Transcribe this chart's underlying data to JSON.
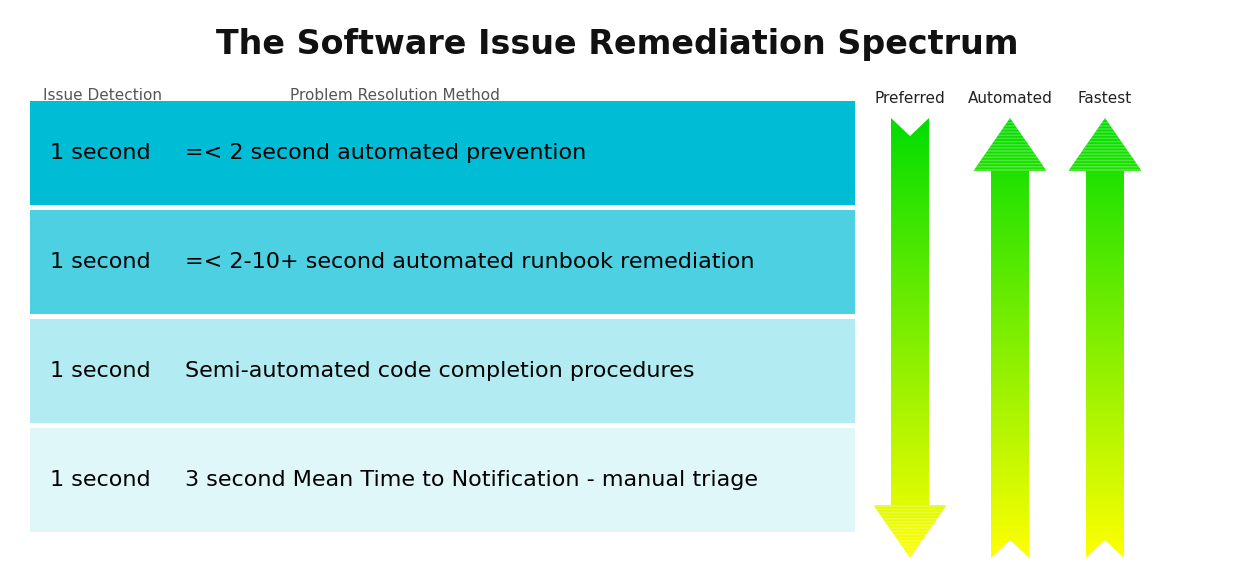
{
  "title": "The Software Issue Remediation Spectrum",
  "title_fontsize": 24,
  "title_fontweight": "bold",
  "col1_header": "Issue Detection",
  "col2_header": "Problem Resolution Method",
  "arrow_labels": [
    "Preferred",
    "Automated",
    "Fastest"
  ],
  "rows": [
    {
      "detection": "1 second",
      "description": "=< 2 second automated prevention",
      "bg_color": "#00BCD4",
      "text_color": "#000000",
      "fontsize": 16
    },
    {
      "detection": "1 second",
      "description": "=< 2-10+ second automated runbook remediation",
      "bg_color": "#4DD0E1",
      "text_color": "#000000",
      "fontsize": 16
    },
    {
      "detection": "1 second",
      "description": "Semi-automated code completion procedures",
      "bg_color": "#B2EBF2",
      "text_color": "#000000",
      "fontsize": 16
    },
    {
      "detection": "1 second",
      "description": "3 second Mean Time to Notification - manual triage",
      "bg_color": "#E0F7FA",
      "text_color": "#000000",
      "fontsize": 16
    }
  ],
  "bg_color": "#FFFFFF",
  "arrow_color_top": "#00DD00",
  "arrow_color_bottom": "#FFFF00",
  "arrow_label_fontsize": 11,
  "header_fontsize": 11
}
